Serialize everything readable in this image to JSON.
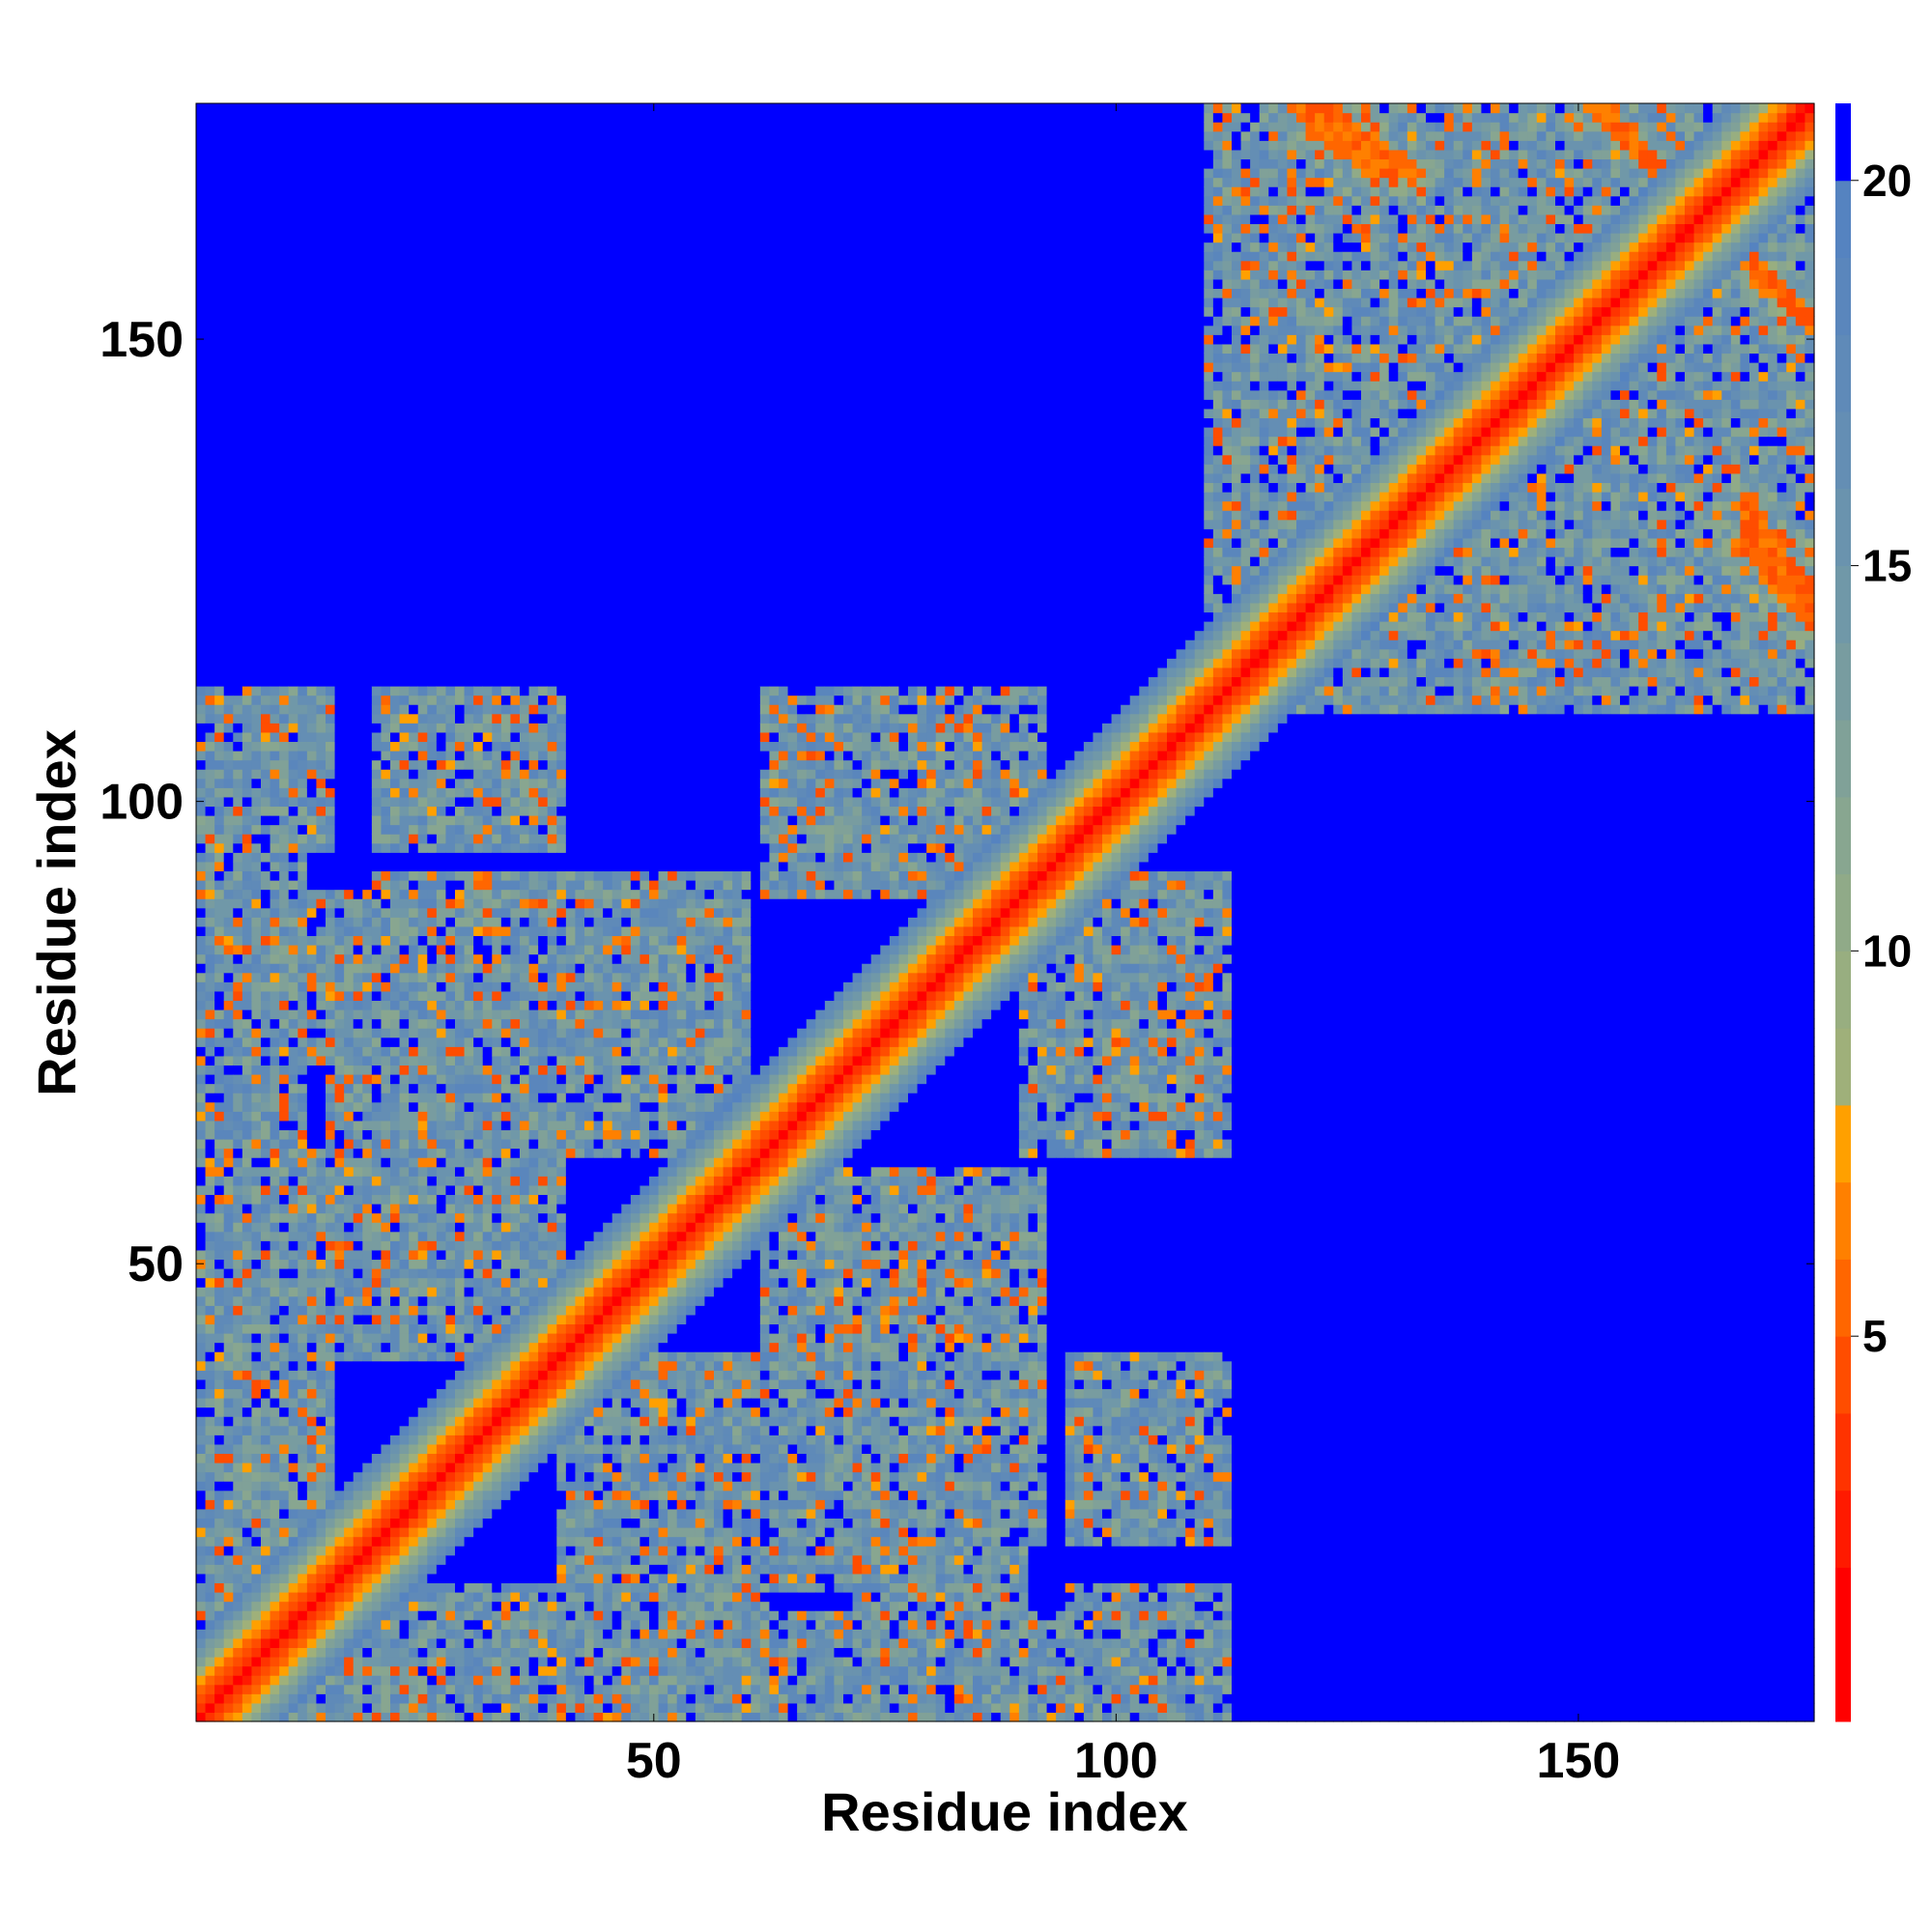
{
  "chart_data": {
    "type": "heatmap",
    "title": "",
    "xlabel": "Residue index",
    "ylabel": "Residue index",
    "n_residues": 175,
    "xlim": [
      0.5,
      175.5
    ],
    "ylim": [
      0.5,
      175.5
    ],
    "x_ticks": [
      50,
      100,
      150
    ],
    "y_ticks": [
      50,
      100,
      150
    ],
    "colorbar": {
      "ticks": [
        5,
        10,
        15,
        20
      ],
      "range": [
        0,
        21
      ],
      "levels": [
        {
          "upper": 2,
          "color": "#ff0000"
        },
        {
          "upper": 3,
          "color": "#ff1a00"
        },
        {
          "upper": 4,
          "color": "#ff3300"
        },
        {
          "upper": 5,
          "color": "#ff4d00"
        },
        {
          "upper": 6,
          "color": "#ff6600"
        },
        {
          "upper": 7,
          "color": "#ff8000"
        },
        {
          "upper": 8,
          "color": "#ffa000"
        },
        {
          "upper": 9,
          "color": "#9fb07a"
        },
        {
          "upper": 10,
          "color": "#98ae80"
        },
        {
          "upper": 11,
          "color": "#90aa88"
        },
        {
          "upper": 12,
          "color": "#88a690"
        },
        {
          "upper": 13,
          "color": "#80a198"
        },
        {
          "upper": 14,
          "color": "#789ca0"
        },
        {
          "upper": 15,
          "color": "#7098a8"
        },
        {
          "upper": 16,
          "color": "#6a93ae"
        },
        {
          "upper": 17,
          "color": "#648eb4"
        },
        {
          "upper": 18,
          "color": "#5f8ab8"
        },
        {
          "upper": 19,
          "color": "#5a86bc"
        },
        {
          "upper": 20,
          "color": "#5583c0"
        },
        {
          "upper": 21,
          "color": "#0000ff"
        }
      ]
    },
    "contact_blocks": [
      {
        "i": [
          1,
          15
        ],
        "j": [
          1,
          45
        ]
      },
      {
        "i": [
          1,
          15
        ],
        "j": [
          72,
          90
        ]
      },
      {
        "i": [
          5,
          15
        ],
        "j": [
          95,
          112
        ]
      },
      {
        "i": [
          15,
          40
        ],
        "j": [
          60,
          90
        ]
      },
      {
        "i": [
          20,
          40
        ],
        "j": [
          95,
          112
        ]
      },
      {
        "i": [
          40,
          62
        ],
        "j": [
          1,
          40
        ]
      },
      {
        "i": [
          50,
          90
        ],
        "j": [
          1,
          12
        ]
      },
      {
        "i": [
          62,
          92
        ],
        "j": [
          20,
          60
        ]
      },
      {
        "i": [
          62,
          92
        ],
        "j": [
          90,
          112
        ]
      },
      {
        "i": [
          90,
          112
        ],
        "j": [
          1,
          12
        ]
      },
      {
        "i": [
          95,
          112
        ],
        "j": [
          20,
          40
        ]
      },
      {
        "i": [
          95,
          112
        ],
        "j": [
          65,
          90
        ]
      },
      {
        "i": [
          120,
          175
        ],
        "j": [
          120,
          175
        ]
      },
      {
        "i": [
          120,
          175
        ],
        "j": [
          110,
          125
        ]
      }
    ],
    "antidiagonal_strands": [
      {
        "x": [
          120,
          128
        ],
        "y": [
          175,
          168
        ]
      },
      {
        "x": [
          152,
          162
        ],
        "y": [
          175,
          165
        ]
      },
      {
        "x": [
          163,
          175
        ],
        "y": [
          164,
          152
        ]
      },
      {
        "x": [
          168,
          175
        ],
        "y": [
          132,
          122
        ]
      }
    ]
  }
}
